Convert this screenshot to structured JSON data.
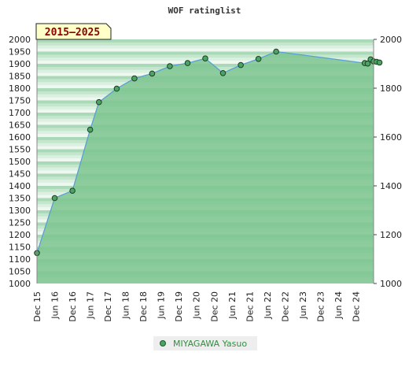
{
  "chart_data": {
    "type": "area",
    "title": "WOF ratinglist",
    "period_label": "2015–2025",
    "ylim": [
      1000,
      2000
    ],
    "left_ticks": [
      "1000",
      "1050",
      "1100",
      "1150",
      "1200",
      "1250",
      "1300",
      "1350",
      "1400",
      "1450",
      "1500",
      "1550",
      "1600",
      "1650",
      "1700",
      "1750",
      "1800",
      "1850",
      "1900",
      "1950",
      "2000"
    ],
    "right_ticks": [
      "1000",
      "1200",
      "1400",
      "1600",
      "1800",
      "2000"
    ],
    "x_labels": [
      "Dec 15",
      "Jun 16",
      "Dec 16",
      "Jun 17",
      "Dec 17",
      "Jun 18",
      "Dec 18",
      "Jun 19",
      "Dec 19",
      "Jun 20",
      "Dec 20",
      "Jun 21",
      "Dec 21",
      "Jun 22",
      "Dec 22",
      "Jun 23",
      "Dec 23",
      "Jun 24",
      "Dec 24"
    ],
    "x_range": [
      "2015-12",
      "2025-06"
    ],
    "series": [
      {
        "name": "MIYAGAWA Yasuo",
        "color": "#4aa564",
        "line_color": "#5a9fd4",
        "points": [
          {
            "x": "2015-12",
            "y": 1125
          },
          {
            "x": "2016-06",
            "y": 1350
          },
          {
            "x": "2016-12",
            "y": 1380
          },
          {
            "x": "2017-06",
            "y": 1630
          },
          {
            "x": "2017-09",
            "y": 1743
          },
          {
            "x": "2018-03",
            "y": 1798
          },
          {
            "x": "2018-09",
            "y": 1840
          },
          {
            "x": "2019-03",
            "y": 1860
          },
          {
            "x": "2019-09",
            "y": 1890
          },
          {
            "x": "2020-03",
            "y": 1903
          },
          {
            "x": "2020-09",
            "y": 1922
          },
          {
            "x": "2021-03",
            "y": 1862
          },
          {
            "x": "2021-09",
            "y": 1895
          },
          {
            "x": "2022-03",
            "y": 1920
          },
          {
            "x": "2022-09",
            "y": 1950
          },
          {
            "x": "2025-03",
            "y": 1903
          },
          {
            "x": "2025-04",
            "y": 1901
          },
          {
            "x": "2025-05",
            "y": 1918
          },
          {
            "x": "2025-06",
            "y": 1910
          },
          {
            "x": "2025-07",
            "y": 1908
          },
          {
            "x": "2025-08",
            "y": 1905
          }
        ]
      }
    ],
    "legend": {
      "label": "MIYAGAWA Yasuo",
      "placement": "bottom"
    },
    "grid": true
  }
}
